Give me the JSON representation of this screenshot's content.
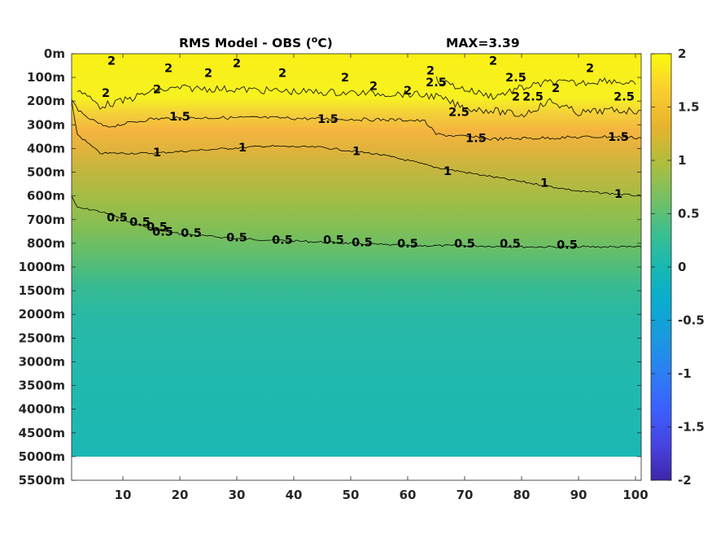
{
  "chart_data": {
    "type": "heatmap",
    "title": "RMS Model - OBS (",
    "title_unit_sup": "o",
    "title_unit_tail": "C)",
    "max_label": "MAX=3.39",
    "x": {
      "lim": [
        1,
        101
      ],
      "ticks": [
        10,
        20,
        30,
        40,
        50,
        60,
        70,
        80,
        90,
        100
      ],
      "tick_labels": [
        "10",
        "20",
        "30",
        "40",
        "50",
        "60",
        "70",
        "80",
        "90",
        "100"
      ]
    },
    "y": {
      "tick_labels": [
        "0m",
        "100m",
        "200m",
        "300m",
        "400m",
        "500m",
        "600m",
        "700m",
        "800m",
        "1000m",
        "1500m",
        "2000m",
        "2500m",
        "3000m",
        "3500m",
        "4000m",
        "4500m",
        "5000m",
        "5500m"
      ],
      "data_bottom_label": "5000m"
    },
    "colorbar": {
      "lim": [
        -2,
        2
      ],
      "ticks": [
        2,
        1.5,
        1,
        0.5,
        0,
        -0.5,
        -1,
        -1.5,
        -2
      ],
      "tick_labels": [
        "2",
        "1.5",
        "1",
        "0.5",
        "0",
        "-0.5",
        "-1",
        "-1.5",
        "-2"
      ],
      "colormap": "parula"
    },
    "contours": [
      {
        "level": 0.5,
        "label": "0.5",
        "points": [
          [
            1,
            6.0
          ],
          [
            2,
            6.5
          ],
          [
            5,
            6.6
          ],
          [
            8,
            6.8
          ],
          [
            12,
            7.15
          ],
          [
            16,
            7.45
          ],
          [
            20,
            7.6
          ],
          [
            30,
            7.8
          ],
          [
            40,
            7.9
          ],
          [
            50,
            8.0
          ],
          [
            60,
            8.1
          ],
          [
            70,
            8.1
          ],
          [
            80,
            8.15
          ],
          [
            90,
            8.15
          ],
          [
            101,
            8.15
          ]
        ],
        "labels_at": [
          [
            9,
            6.9
          ],
          [
            13,
            7.1
          ],
          [
            16,
            7.3
          ],
          [
            17,
            7.5
          ],
          [
            22,
            7.55
          ],
          [
            30,
            7.75
          ],
          [
            38,
            7.85
          ],
          [
            47,
            7.85
          ],
          [
            52,
            7.95
          ],
          [
            60,
            8.0
          ],
          [
            70,
            8.0
          ],
          [
            78,
            8.0
          ],
          [
            88,
            8.05
          ]
        ]
      },
      {
        "level": 1,
        "label": "1",
        "points": [
          [
            1,
            2.0
          ],
          [
            2,
            3.4
          ],
          [
            6,
            4.2
          ],
          [
            15,
            4.2
          ],
          [
            25,
            4.05
          ],
          [
            35,
            3.9
          ],
          [
            45,
            3.95
          ],
          [
            55,
            4.25
          ],
          [
            60,
            4.5
          ],
          [
            65,
            4.8
          ],
          [
            70,
            5.0
          ],
          [
            80,
            5.4
          ],
          [
            90,
            5.8
          ],
          [
            101,
            6.0
          ]
        ],
        "labels_at": [
          [
            16,
            4.15
          ],
          [
            31,
            3.95
          ],
          [
            51,
            4.1
          ],
          [
            67,
            4.95
          ],
          [
            84,
            5.45
          ],
          [
            97,
            5.9
          ]
        ]
      },
      {
        "level": 1.5,
        "label": "1.5",
        "points": [
          [
            1,
            2.0
          ],
          [
            3,
            2.6
          ],
          [
            7,
            3.1
          ],
          [
            15,
            2.75
          ],
          [
            25,
            2.7
          ],
          [
            35,
            2.7
          ],
          [
            45,
            2.75
          ],
          [
            60,
            2.8
          ],
          [
            63,
            2.85
          ],
          [
            65,
            3.4
          ],
          [
            75,
            3.6
          ],
          [
            85,
            3.55
          ],
          [
            95,
            3.5
          ],
          [
            101,
            3.55
          ]
        ],
        "labels_at": [
          [
            20,
            2.65
          ],
          [
            46,
            2.75
          ],
          [
            72,
            3.55
          ],
          [
            97,
            3.5
          ]
        ]
      },
      {
        "level": 2,
        "label": "2",
        "points": [
          [
            2,
            1.5
          ],
          [
            6,
            2.2
          ],
          [
            10,
            2.0
          ],
          [
            15,
            1.6
          ],
          [
            20,
            1.45
          ],
          [
            30,
            1.5
          ],
          [
            40,
            1.6
          ],
          [
            50,
            1.65
          ],
          [
            60,
            1.7
          ],
          [
            65,
            1.8
          ],
          [
            70,
            2.3
          ],
          [
            75,
            2.4
          ],
          [
            80,
            2.6
          ],
          [
            85,
            2.0
          ],
          [
            90,
            2.5
          ],
          [
            95,
            2.4
          ],
          [
            101,
            2.4
          ]
        ],
        "labels_at": [
          [
            8,
            0.3
          ],
          [
            18,
            0.6
          ],
          [
            7,
            1.65
          ],
          [
            16,
            1.5
          ],
          [
            25,
            0.8
          ],
          [
            30,
            0.4
          ],
          [
            38,
            0.8
          ],
          [
            49,
            1.0
          ],
          [
            54,
            1.35
          ],
          [
            60,
            1.55
          ],
          [
            64,
            0.7
          ],
          [
            75,
            0.3
          ],
          [
            79,
            1.8
          ],
          [
            86,
            1.45
          ],
          [
            92,
            0.6
          ]
        ]
      },
      {
        "level": 2.5,
        "label": "2.5",
        "points": [
          [
            65,
            1.1
          ],
          [
            70,
            1.5
          ],
          [
            75,
            1.8
          ],
          [
            80,
            1.45
          ],
          [
            85,
            1.2
          ],
          [
            90,
            1.25
          ],
          [
            95,
            1.1
          ],
          [
            100,
            1.3
          ]
        ],
        "labels_at": [
          [
            65,
            1.2
          ],
          [
            69,
            2.45
          ],
          [
            79,
            1.0
          ],
          [
            82,
            1.8
          ],
          [
            98,
            1.8
          ]
        ]
      }
    ]
  }
}
